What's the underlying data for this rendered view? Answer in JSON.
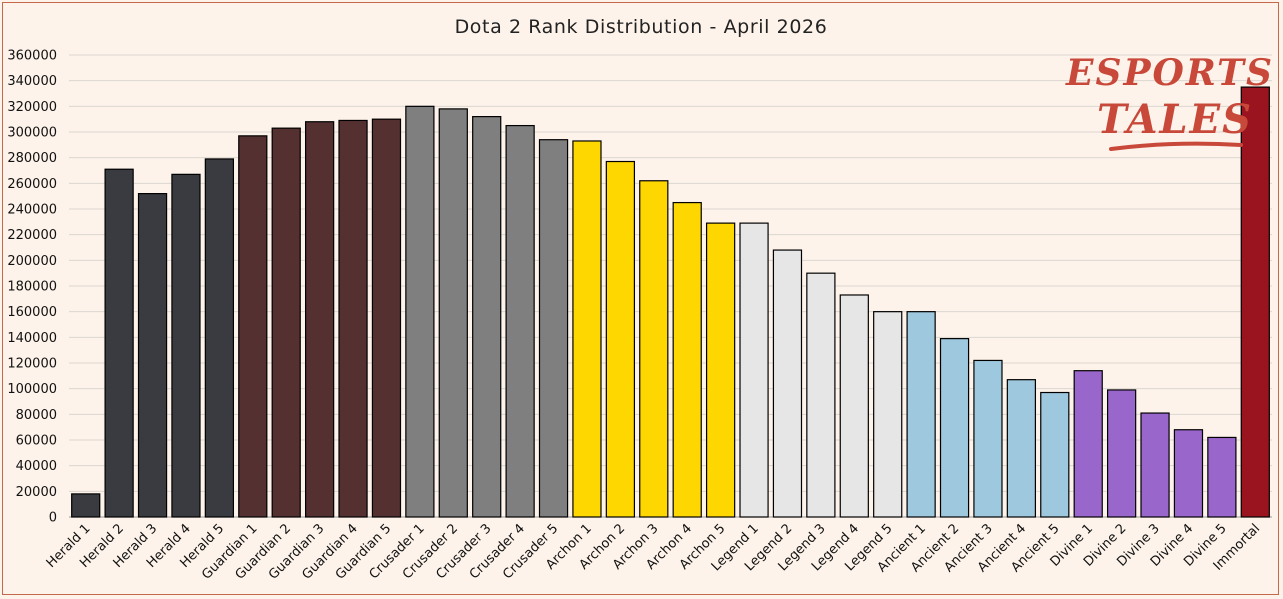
{
  "chart_data": {
    "type": "bar",
    "title": "Dota 2 Rank Distribution - April 2026",
    "xlabel": "",
    "ylabel": "",
    "ylim": [
      0,
      360000
    ],
    "yticks": [
      0,
      20000,
      40000,
      60000,
      80000,
      100000,
      120000,
      140000,
      160000,
      180000,
      200000,
      220000,
      240000,
      260000,
      280000,
      300000,
      320000,
      340000,
      360000
    ],
    "grid": true,
    "categories": [
      "Herald 1",
      "Herald 2",
      "Herald 3",
      "Herald 4",
      "Herald 5",
      "Guardian 1",
      "Guardian 2",
      "Guardian 3",
      "Guardian 4",
      "Guardian 5",
      "Crusader 1",
      "Crusader 2",
      "Crusader 3",
      "Crusader 4",
      "Crusader 5",
      "Archon 1",
      "Archon 2",
      "Archon 3",
      "Archon 4",
      "Archon 5",
      "Legend 1",
      "Legend 2",
      "Legend 3",
      "Legend 4",
      "Legend 5",
      "Ancient 1",
      "Ancient 2",
      "Ancient 3",
      "Ancient 4",
      "Ancient 5",
      "Divine 1",
      "Divine 2",
      "Divine 3",
      "Divine 4",
      "Divine 5",
      "Immortal"
    ],
    "values": [
      18000,
      271000,
      252000,
      267000,
      279000,
      297000,
      303000,
      308000,
      309000,
      310000,
      320000,
      318000,
      312000,
      305000,
      294000,
      293000,
      277000,
      262000,
      245000,
      229000,
      229000,
      208000,
      190000,
      173000,
      160000,
      160000,
      139000,
      122000,
      107000,
      97000,
      114000,
      99000,
      81000,
      68000,
      62000,
      335000
    ],
    "colors": [
      "#3a3b40",
      "#3a3b40",
      "#3a3b40",
      "#3a3b40",
      "#3a3b40",
      "#543031",
      "#543031",
      "#543031",
      "#543031",
      "#543031",
      "#7f7f7f",
      "#7f7f7f",
      "#7f7f7f",
      "#7f7f7f",
      "#7f7f7f",
      "#ffd700",
      "#ffd700",
      "#ffd700",
      "#ffd700",
      "#ffd700",
      "#e6e6e6",
      "#e6e6e6",
      "#e6e6e6",
      "#e6e6e6",
      "#e6e6e6",
      "#9ec8dd",
      "#9ec8dd",
      "#9ec8dd",
      "#9ec8dd",
      "#9ec8dd",
      "#9966cc",
      "#9966cc",
      "#9966cc",
      "#9966cc",
      "#9966cc",
      "#9a1420"
    ]
  },
  "logo": {
    "line1": "ESPORTS",
    "line2": "TALES"
  }
}
